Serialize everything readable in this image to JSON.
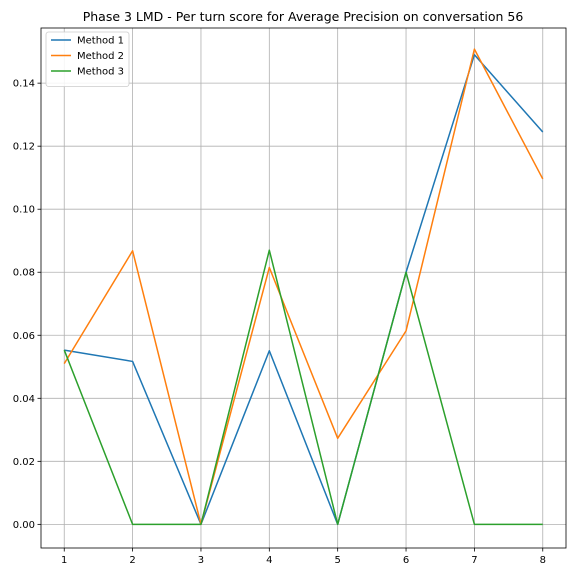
{
  "chart_data": {
    "type": "line",
    "title": "Phase 3 LMD - Per turn score for Average Precision on conversation 56",
    "xlabel": "",
    "ylabel": "",
    "x": [
      1,
      2,
      3,
      4,
      5,
      6,
      7,
      8
    ],
    "xlim": [
      0.66,
      8.34
    ],
    "ylim": [
      -0.0075,
      0.1575
    ],
    "x_ticks": [
      "1",
      "2",
      "3",
      "4",
      "5",
      "6",
      "7",
      "8"
    ],
    "y_ticks": [
      "0.00",
      "0.02",
      "0.04",
      "0.06",
      "0.08",
      "0.10",
      "0.12",
      "0.14"
    ],
    "grid": true,
    "legend": "top-left",
    "series": [
      {
        "name": "Method 1",
        "color": "#1f77b4",
        "values": [
          0.0553,
          0.0517,
          0.0,
          0.0551,
          0.0,
          0.08,
          0.149,
          0.1245
        ]
      },
      {
        "name": "Method 2",
        "color": "#ff7f0e",
        "values": [
          0.051,
          0.0868,
          0.0,
          0.0815,
          0.0273,
          0.0614,
          0.1508,
          0.1096
        ]
      },
      {
        "name": "Method 3",
        "color": "#2ca02c",
        "values": [
          0.0553,
          0.0,
          0.0,
          0.087,
          0.0,
          0.08,
          0.0,
          0.0
        ]
      }
    ]
  }
}
